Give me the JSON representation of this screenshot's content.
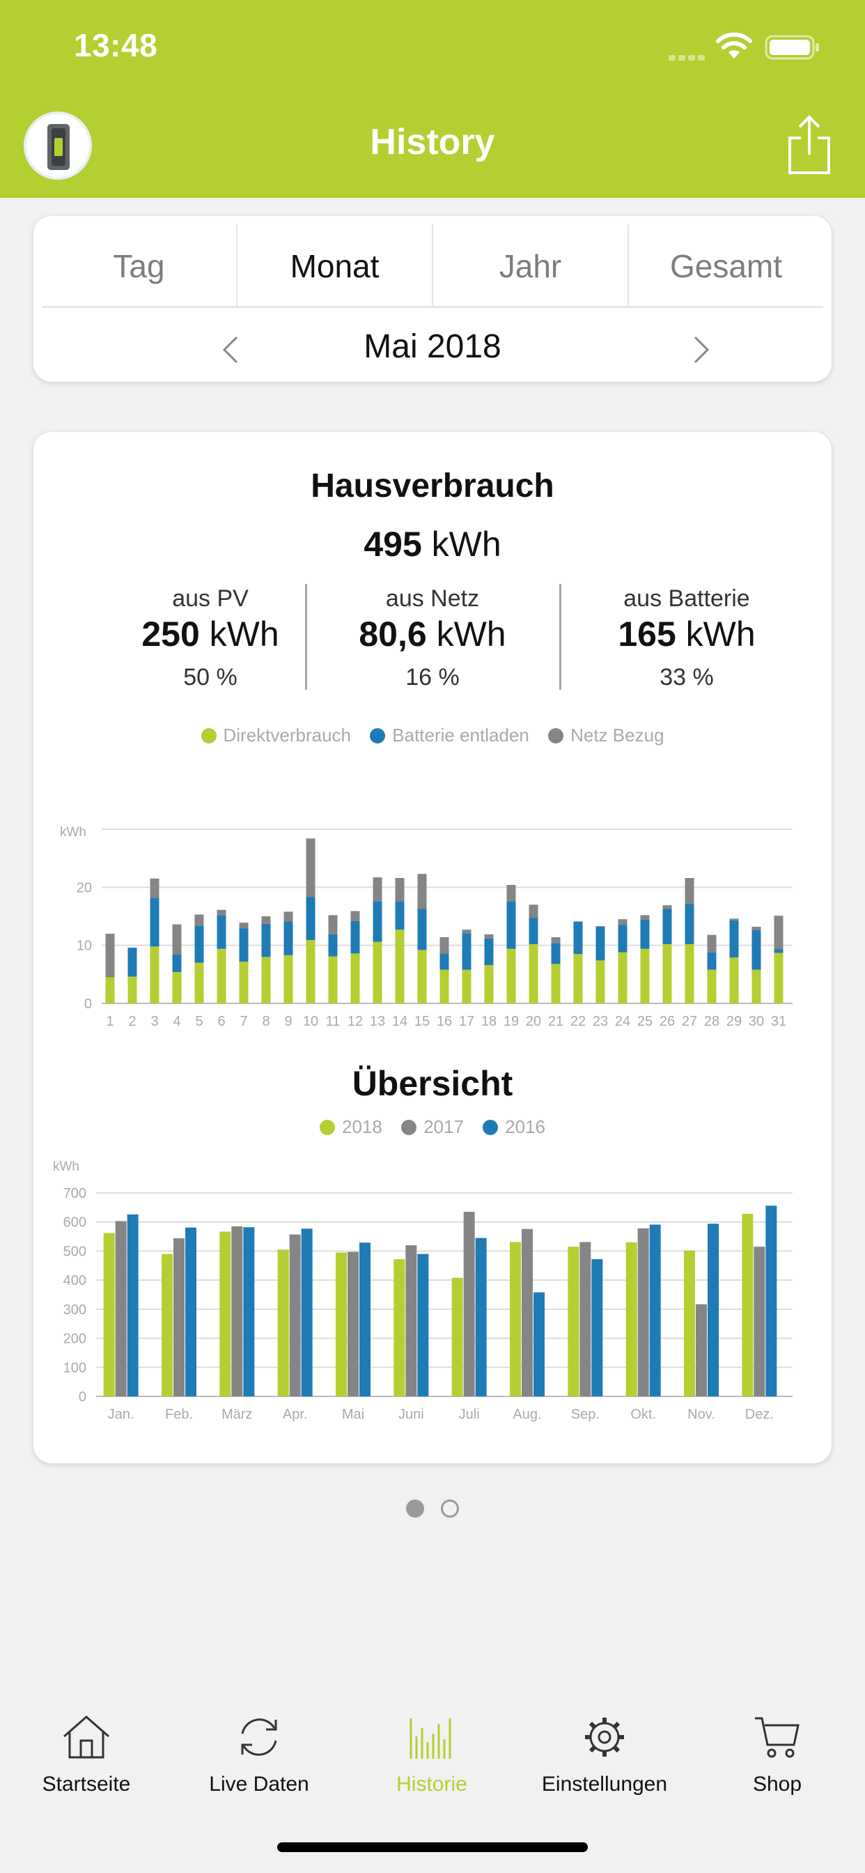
{
  "status": {
    "time": "13:48"
  },
  "header": {
    "title": "History"
  },
  "tabs": [
    {
      "label": "Tag",
      "active": false
    },
    {
      "label": "Monat",
      "active": true
    },
    {
      "label": "Jahr",
      "active": false
    },
    {
      "label": "Gesamt",
      "active": false
    }
  ],
  "period": {
    "label": "Mai 2018"
  },
  "summary": {
    "title": "Hausverbrauch",
    "total_value": "495",
    "total_unit": "kWh",
    "stats": [
      {
        "label": "aus PV",
        "value": "250",
        "unit": "kWh",
        "percent": "50 %"
      },
      {
        "label": "aus Netz",
        "value": "80,6",
        "unit": "kWh",
        "percent": "16 %"
      },
      {
        "label": "aus Batterie",
        "value": "165",
        "unit": "kWh",
        "percent": "33 %"
      }
    ]
  },
  "colors": {
    "green": "#b4cf31",
    "blue": "#1f7bb6",
    "grey": "#858585"
  },
  "chart_data": [
    {
      "type": "bar",
      "stacked": true,
      "ylabel": "kWh",
      "ylim": [
        0,
        30
      ],
      "yticks": [
        0,
        10,
        20
      ],
      "categories": [
        "1",
        "2",
        "3",
        "4",
        "5",
        "6",
        "7",
        "8",
        "9",
        "10",
        "11",
        "12",
        "13",
        "14",
        "15",
        "16",
        "17",
        "18",
        "19",
        "20",
        "21",
        "22",
        "23",
        "24",
        "25",
        "26",
        "27",
        "28",
        "29",
        "30",
        "31"
      ],
      "series": [
        {
          "name": "Direktverbrauch",
          "color": "#b4cf31",
          "values": [
            4.5,
            4.6,
            9.8,
            5.4,
            7.0,
            9.4,
            7.2,
            8.0,
            8.3,
            10.9,
            8.1,
            8.6,
            10.6,
            12.7,
            9.2,
            5.8,
            5.8,
            6.6,
            9.4,
            10.2,
            6.8,
            8.5,
            7.4,
            8.8,
            9.4,
            10.2,
            10.2,
            5.8,
            7.9,
            5.8,
            8.7
          ]
        },
        {
          "name": "Batterie entladen",
          "color": "#1f7bb6",
          "values": [
            0.0,
            5.0,
            8.4,
            3.0,
            6.4,
            5.8,
            5.7,
            5.7,
            5.8,
            7.4,
            3.8,
            5.6,
            7.0,
            4.9,
            7.1,
            2.8,
            6.3,
            4.6,
            8.2,
            4.5,
            3.6,
            5.6,
            5.8,
            4.7,
            5.0,
            6.1,
            6.9,
            3.0,
            6.4,
            6.8,
            0.6
          ]
        },
        {
          "name": "Netz Bezug",
          "color": "#858585",
          "values": [
            7.5,
            0.0,
            3.3,
            5.2,
            1.9,
            0.9,
            1.0,
            1.3,
            1.7,
            10.1,
            3.3,
            1.7,
            4.1,
            4.0,
            6.0,
            2.8,
            0.6,
            0.7,
            2.8,
            2.3,
            1.0,
            0.0,
            0.1,
            1.0,
            0.8,
            0.6,
            4.5,
            3.0,
            0.3,
            0.6,
            5.8
          ]
        }
      ],
      "legend_position": "top"
    },
    {
      "type": "bar",
      "title": "Übersicht",
      "ylabel": "kWh",
      "ylim": [
        0,
        700
      ],
      "yticks": [
        0,
        100,
        200,
        300,
        400,
        500,
        600,
        700
      ],
      "categories": [
        "Jan.",
        "Feb.",
        "März",
        "Apr.",
        "Mai",
        "Juni",
        "Juli",
        "Aug.",
        "Sep.",
        "Okt.",
        "Nov.",
        "Dez."
      ],
      "series": [
        {
          "name": "2018",
          "color": "#b4cf31",
          "values": [
            562,
            490,
            567,
            505,
            495,
            472,
            408,
            531,
            515,
            530,
            502,
            628
          ]
        },
        {
          "name": "2017",
          "color": "#858585",
          "values": [
            603,
            544,
            585,
            557,
            497,
            520,
            635,
            576,
            531,
            578,
            317,
            515
          ]
        },
        {
          "name": "2016",
          "color": "#1f7bb6",
          "values": [
            626,
            581,
            582,
            577,
            529,
            490,
            545,
            358,
            472,
            591,
            594,
            656
          ]
        }
      ],
      "legend_position": "top"
    }
  ],
  "pager": {
    "pages": 2,
    "current": 1
  },
  "tabbar": [
    {
      "label": "Startseite",
      "icon": "house-icon",
      "active": false
    },
    {
      "label": "Live Daten",
      "icon": "refresh-icon",
      "active": false
    },
    {
      "label": "Historie",
      "icon": "bars-icon",
      "active": true
    },
    {
      "label": "Einstellungen",
      "icon": "gear-icon",
      "active": false
    },
    {
      "label": "Shop",
      "icon": "cart-icon",
      "active": false
    }
  ]
}
